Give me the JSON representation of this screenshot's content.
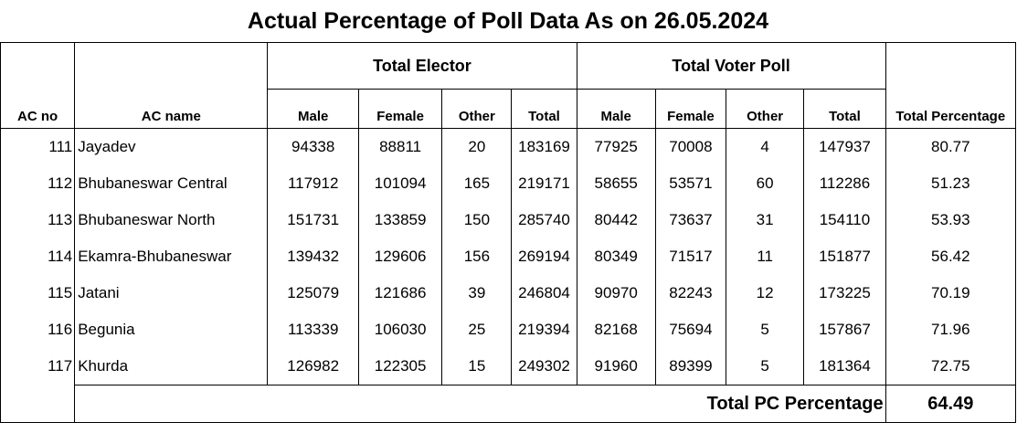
{
  "title": "Actual Percentage of Poll Data As on 26.05.2024",
  "groups": {
    "electors": "Total Elector",
    "voter_poll": "Total Voter Poll"
  },
  "headers": {
    "ac_no": "AC no",
    "ac_name": "AC name",
    "e_male": "Male",
    "e_female": "Female",
    "e_other": "Other",
    "e_total": "Total",
    "v_male": "Male",
    "v_female": "Female",
    "v_other": "Other",
    "v_total": "Total",
    "percentage": "Total Percentage"
  },
  "rows": [
    {
      "ac_no": "111",
      "ac_name": "Jayadev",
      "e_male": "94338",
      "e_female": "88811",
      "e_other": "20",
      "e_total": "183169",
      "v_male": "77925",
      "v_female": "70008",
      "v_other": "4",
      "v_total": "147937",
      "percentage": "80.77"
    },
    {
      "ac_no": "112",
      "ac_name": "Bhubaneswar Central",
      "e_male": "117912",
      "e_female": "101094",
      "e_other": "165",
      "e_total": "219171",
      "v_male": "58655",
      "v_female": "53571",
      "v_other": "60",
      "v_total": "112286",
      "percentage": "51.23"
    },
    {
      "ac_no": "113",
      "ac_name": "Bhubaneswar North",
      "e_male": "151731",
      "e_female": "133859",
      "e_other": "150",
      "e_total": "285740",
      "v_male": "80442",
      "v_female": "73637",
      "v_other": "31",
      "v_total": "154110",
      "percentage": "53.93"
    },
    {
      "ac_no": "114",
      "ac_name": "Ekamra-Bhubaneswar",
      "e_male": "139432",
      "e_female": "129606",
      "e_other": "156",
      "e_total": "269194",
      "v_male": "80349",
      "v_female": "71517",
      "v_other": "11",
      "v_total": "151877",
      "percentage": "56.42"
    },
    {
      "ac_no": "115",
      "ac_name": "Jatani",
      "e_male": "125079",
      "e_female": "121686",
      "e_other": "39",
      "e_total": "246804",
      "v_male": "90970",
      "v_female": "82243",
      "v_other": "12",
      "v_total": "173225",
      "percentage": "70.19"
    },
    {
      "ac_no": "116",
      "ac_name": "Begunia",
      "e_male": "113339",
      "e_female": "106030",
      "e_other": "25",
      "e_total": "219394",
      "v_male": "82168",
      "v_female": "75694",
      "v_other": "5",
      "v_total": "157867",
      "percentage": "71.96"
    },
    {
      "ac_no": "117",
      "ac_name": "Khurda",
      "e_male": "126982",
      "e_female": "122305",
      "e_other": "15",
      "e_total": "249302",
      "v_male": "91960",
      "v_female": "89399",
      "v_other": "5",
      "v_total": "181364",
      "percentage": "72.75"
    }
  ],
  "footer": {
    "label": "Total PC Percentage",
    "value": "64.49"
  }
}
